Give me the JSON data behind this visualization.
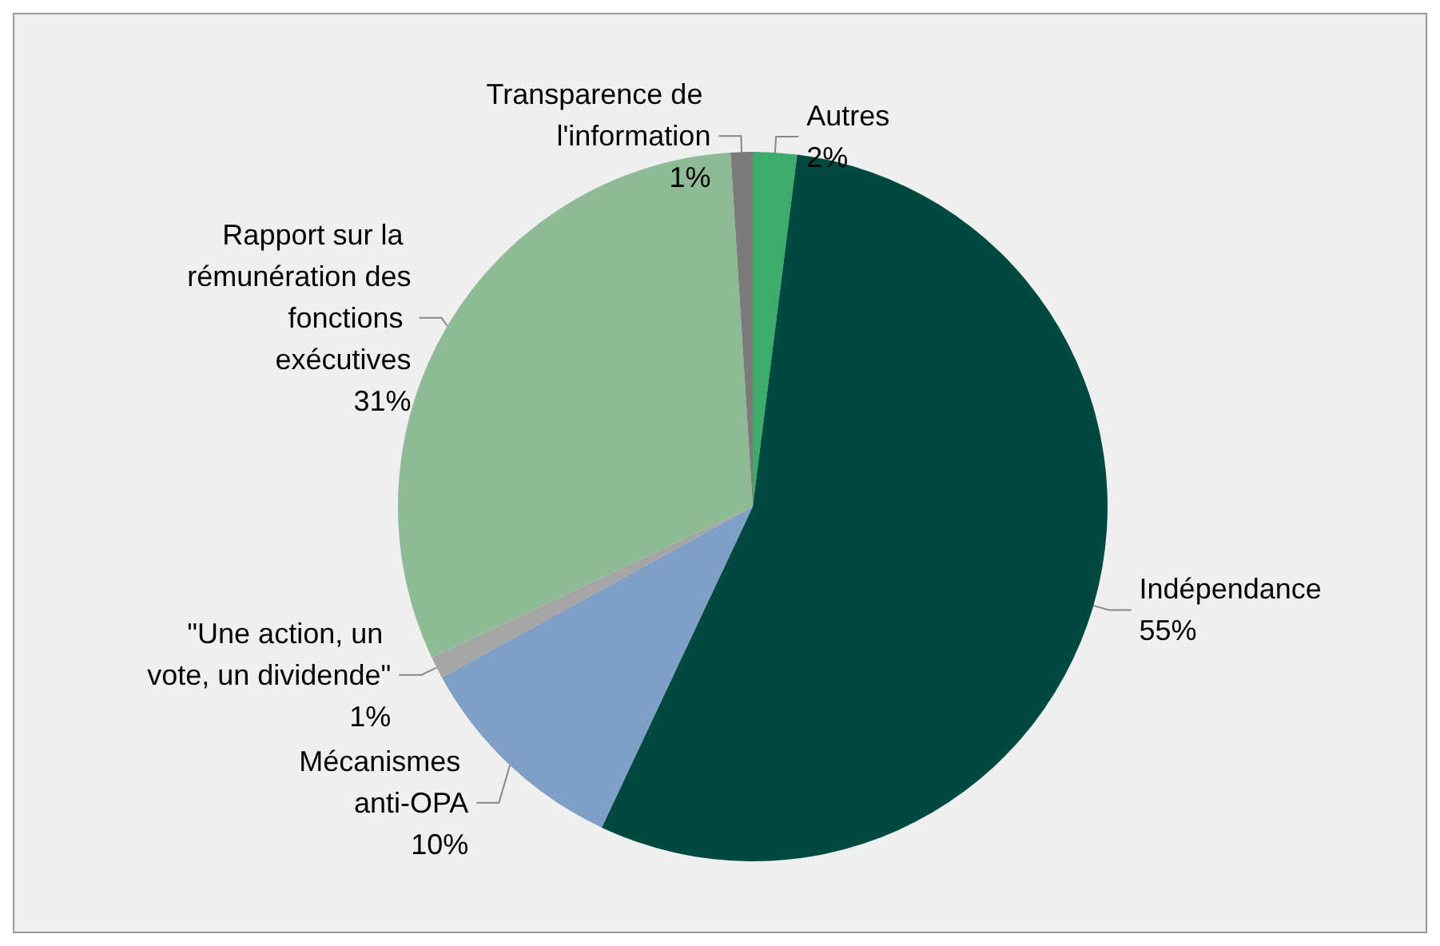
{
  "chart_data": {
    "type": "pie",
    "categories": [
      "Autres",
      "Indépendance",
      "Mécanismes anti-OPA",
      "\"Une action, un vote, un dividende\"",
      "Rapport sur la rémunération des fonctions exécutives",
      "Transparence de l'information"
    ],
    "values": [
      2,
      55,
      10,
      1,
      31,
      1
    ],
    "colors": [
      "#3dab6b",
      "#004940",
      "#7f9fc6",
      "#a5a5a5",
      "#8ebb95",
      "#7b7b7b"
    ],
    "value_labels": [
      "2%",
      "55%",
      "10%",
      "1%",
      "31%",
      "1%"
    ],
    "legend": false
  }
}
